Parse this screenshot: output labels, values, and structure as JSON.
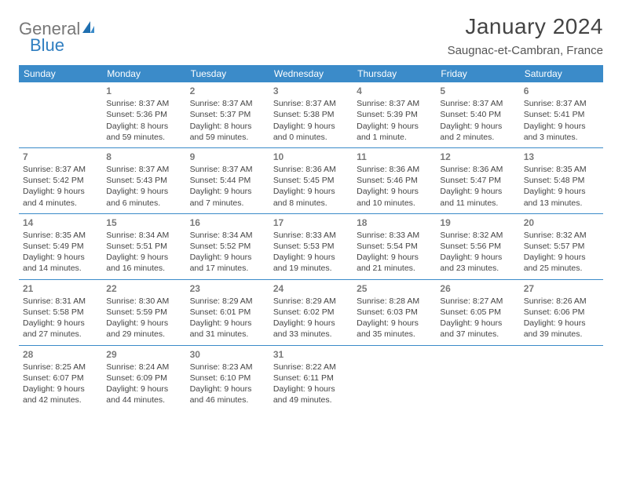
{
  "brand": {
    "part1": "General",
    "part2": "Blue"
  },
  "title": "January 2024",
  "location": "Saugnac-et-Cambran, France",
  "colors": {
    "header_bg": "#3b8bc9",
    "header_text": "#ffffff",
    "cell_border": "#3b8bc9",
    "body_text": "#444444",
    "daynum_text": "#7a7a7a",
    "logo_gray": "#777777",
    "logo_blue": "#2f7ec0",
    "page_bg": "#ffffff"
  },
  "typography": {
    "title_fontsize": 28,
    "location_fontsize": 15,
    "header_fontsize": 12,
    "cell_fontsize": 10.5,
    "daynum_fontsize": 12
  },
  "weekdays": [
    "Sunday",
    "Monday",
    "Tuesday",
    "Wednesday",
    "Thursday",
    "Friday",
    "Saturday"
  ],
  "weeks": [
    [
      null,
      {
        "day": "1",
        "sunrise": "Sunrise: 8:37 AM",
        "sunset": "Sunset: 5:36 PM",
        "daylight": "Daylight: 8 hours and 59 minutes."
      },
      {
        "day": "2",
        "sunrise": "Sunrise: 8:37 AM",
        "sunset": "Sunset: 5:37 PM",
        "daylight": "Daylight: 8 hours and 59 minutes."
      },
      {
        "day": "3",
        "sunrise": "Sunrise: 8:37 AM",
        "sunset": "Sunset: 5:38 PM",
        "daylight": "Daylight: 9 hours and 0 minutes."
      },
      {
        "day": "4",
        "sunrise": "Sunrise: 8:37 AM",
        "sunset": "Sunset: 5:39 PM",
        "daylight": "Daylight: 9 hours and 1 minute."
      },
      {
        "day": "5",
        "sunrise": "Sunrise: 8:37 AM",
        "sunset": "Sunset: 5:40 PM",
        "daylight": "Daylight: 9 hours and 2 minutes."
      },
      {
        "day": "6",
        "sunrise": "Sunrise: 8:37 AM",
        "sunset": "Sunset: 5:41 PM",
        "daylight": "Daylight: 9 hours and 3 minutes."
      }
    ],
    [
      {
        "day": "7",
        "sunrise": "Sunrise: 8:37 AM",
        "sunset": "Sunset: 5:42 PM",
        "daylight": "Daylight: 9 hours and 4 minutes."
      },
      {
        "day": "8",
        "sunrise": "Sunrise: 8:37 AM",
        "sunset": "Sunset: 5:43 PM",
        "daylight": "Daylight: 9 hours and 6 minutes."
      },
      {
        "day": "9",
        "sunrise": "Sunrise: 8:37 AM",
        "sunset": "Sunset: 5:44 PM",
        "daylight": "Daylight: 9 hours and 7 minutes."
      },
      {
        "day": "10",
        "sunrise": "Sunrise: 8:36 AM",
        "sunset": "Sunset: 5:45 PM",
        "daylight": "Daylight: 9 hours and 8 minutes."
      },
      {
        "day": "11",
        "sunrise": "Sunrise: 8:36 AM",
        "sunset": "Sunset: 5:46 PM",
        "daylight": "Daylight: 9 hours and 10 minutes."
      },
      {
        "day": "12",
        "sunrise": "Sunrise: 8:36 AM",
        "sunset": "Sunset: 5:47 PM",
        "daylight": "Daylight: 9 hours and 11 minutes."
      },
      {
        "day": "13",
        "sunrise": "Sunrise: 8:35 AM",
        "sunset": "Sunset: 5:48 PM",
        "daylight": "Daylight: 9 hours and 13 minutes."
      }
    ],
    [
      {
        "day": "14",
        "sunrise": "Sunrise: 8:35 AM",
        "sunset": "Sunset: 5:49 PM",
        "daylight": "Daylight: 9 hours and 14 minutes."
      },
      {
        "day": "15",
        "sunrise": "Sunrise: 8:34 AM",
        "sunset": "Sunset: 5:51 PM",
        "daylight": "Daylight: 9 hours and 16 minutes."
      },
      {
        "day": "16",
        "sunrise": "Sunrise: 8:34 AM",
        "sunset": "Sunset: 5:52 PM",
        "daylight": "Daylight: 9 hours and 17 minutes."
      },
      {
        "day": "17",
        "sunrise": "Sunrise: 8:33 AM",
        "sunset": "Sunset: 5:53 PM",
        "daylight": "Daylight: 9 hours and 19 minutes."
      },
      {
        "day": "18",
        "sunrise": "Sunrise: 8:33 AM",
        "sunset": "Sunset: 5:54 PM",
        "daylight": "Daylight: 9 hours and 21 minutes."
      },
      {
        "day": "19",
        "sunrise": "Sunrise: 8:32 AM",
        "sunset": "Sunset: 5:56 PM",
        "daylight": "Daylight: 9 hours and 23 minutes."
      },
      {
        "day": "20",
        "sunrise": "Sunrise: 8:32 AM",
        "sunset": "Sunset: 5:57 PM",
        "daylight": "Daylight: 9 hours and 25 minutes."
      }
    ],
    [
      {
        "day": "21",
        "sunrise": "Sunrise: 8:31 AM",
        "sunset": "Sunset: 5:58 PM",
        "daylight": "Daylight: 9 hours and 27 minutes."
      },
      {
        "day": "22",
        "sunrise": "Sunrise: 8:30 AM",
        "sunset": "Sunset: 5:59 PM",
        "daylight": "Daylight: 9 hours and 29 minutes."
      },
      {
        "day": "23",
        "sunrise": "Sunrise: 8:29 AM",
        "sunset": "Sunset: 6:01 PM",
        "daylight": "Daylight: 9 hours and 31 minutes."
      },
      {
        "day": "24",
        "sunrise": "Sunrise: 8:29 AM",
        "sunset": "Sunset: 6:02 PM",
        "daylight": "Daylight: 9 hours and 33 minutes."
      },
      {
        "day": "25",
        "sunrise": "Sunrise: 8:28 AM",
        "sunset": "Sunset: 6:03 PM",
        "daylight": "Daylight: 9 hours and 35 minutes."
      },
      {
        "day": "26",
        "sunrise": "Sunrise: 8:27 AM",
        "sunset": "Sunset: 6:05 PM",
        "daylight": "Daylight: 9 hours and 37 minutes."
      },
      {
        "day": "27",
        "sunrise": "Sunrise: 8:26 AM",
        "sunset": "Sunset: 6:06 PM",
        "daylight": "Daylight: 9 hours and 39 minutes."
      }
    ],
    [
      {
        "day": "28",
        "sunrise": "Sunrise: 8:25 AM",
        "sunset": "Sunset: 6:07 PM",
        "daylight": "Daylight: 9 hours and 42 minutes."
      },
      {
        "day": "29",
        "sunrise": "Sunrise: 8:24 AM",
        "sunset": "Sunset: 6:09 PM",
        "daylight": "Daylight: 9 hours and 44 minutes."
      },
      {
        "day": "30",
        "sunrise": "Sunrise: 8:23 AM",
        "sunset": "Sunset: 6:10 PM",
        "daylight": "Daylight: 9 hours and 46 minutes."
      },
      {
        "day": "31",
        "sunrise": "Sunrise: 8:22 AM",
        "sunset": "Sunset: 6:11 PM",
        "daylight": "Daylight: 9 hours and 49 minutes."
      },
      null,
      null,
      null
    ]
  ]
}
